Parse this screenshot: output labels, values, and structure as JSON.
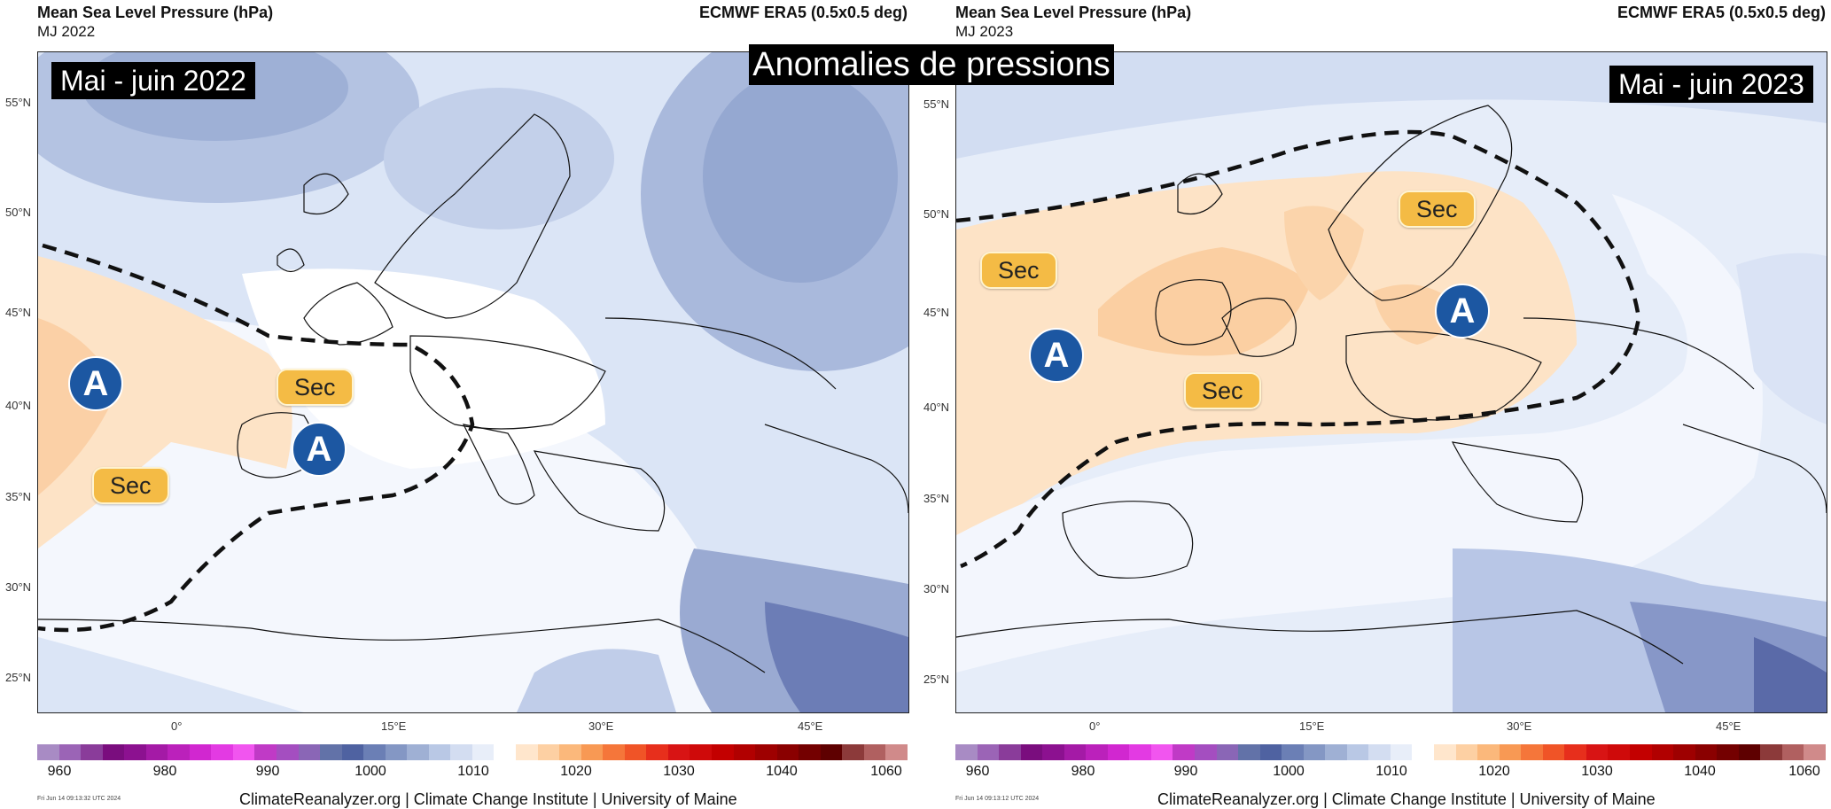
{
  "main_title": "Anomalies de pressions",
  "footer_text": "ClimateReanalyzer.org | Climate Change Institute | University of Maine",
  "lat_labels": [
    "55°N",
    "50°N",
    "45°N",
    "40°N",
    "35°N",
    "30°N",
    "25°N"
  ],
  "lon_labels": [
    "0°",
    "15°E",
    "30°E",
    "45°E"
  ],
  "legend_ticks": [
    "960",
    "980",
    "990",
    "1000",
    "1010",
    "1020",
    "1030",
    "1040",
    "1060"
  ],
  "legend_colors": [
    "#a88bc4",
    "#9b64b6",
    "#8a3c9a",
    "#7a0d7e",
    "#8c1190",
    "#a41aa6",
    "#bb21bb",
    "#d127d0",
    "#e33ae3",
    "#f155ef",
    "#c03ac6",
    "#a44ec0",
    "#8a66b6",
    "#6272a8",
    "#4f62a1",
    "#6b7fb5",
    "#8497c4",
    "#9fb0d4",
    "#b9c8e5",
    "#d3ddf1",
    "#e8eef9",
    "#ffffff",
    "#ffe6cc",
    "#fdd0a3",
    "#fbb87b",
    "#f89954",
    "#f5763a",
    "#f05427",
    "#e72f1c",
    "#d81414",
    "#cf0a0a",
    "#c30000",
    "#b10000",
    "#9e0000",
    "#8a0000",
    "#740000",
    "#5e0000",
    "#8c3a3a",
    "#b06060",
    "#d08a8a"
  ],
  "panels": [
    {
      "id": "left",
      "title": "Mean Sea Level Pressure (hPa)",
      "subtitle": "MJ 2022",
      "source": "ECMWF ERA5 (0.5x0.5 deg)",
      "period_label": "Mai - juin 2022",
      "stamp": "Fri Jun 14 09:13:32 UTC 2024",
      "sec_labels": [
        "Sec",
        "Sec"
      ],
      "high_labels": [
        "A",
        "A"
      ]
    },
    {
      "id": "right",
      "title": "Mean Sea Level Pressure (hPa)",
      "subtitle": "MJ 2023",
      "source": "ECMWF ERA5 (0.5x0.5 deg)",
      "period_label": "Mai - juin 2023",
      "stamp": "Fri Jun 14 09:13:12 UTC 2024",
      "sec_labels": [
        "Sec",
        "Sec",
        "Sec"
      ],
      "high_labels": [
        "A",
        "A"
      ]
    }
  ]
}
